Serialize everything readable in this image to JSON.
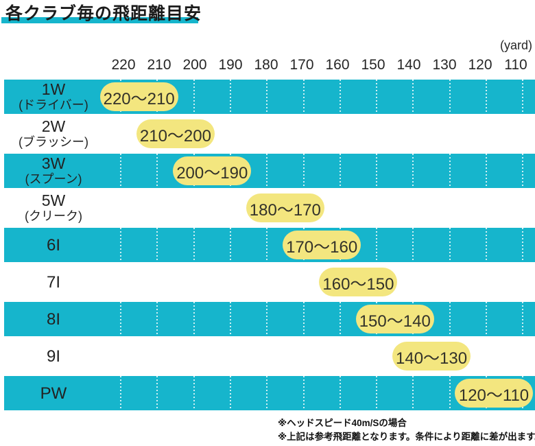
{
  "title": "各クラブ毎の飛距離目安",
  "axis": {
    "unit_label": "(yard)",
    "ticks": [
      "220",
      "210",
      "200",
      "190",
      "180",
      "170",
      "160",
      "150",
      "140",
      "130",
      "120",
      "110"
    ]
  },
  "rows": [
    {
      "club": "1W",
      "club_sub": "(ドライバー)",
      "range_label": "220〜210",
      "range": [
        220,
        210
      ]
    },
    {
      "club": "2W",
      "club_sub": "(ブラッシー)",
      "range_label": "210〜200",
      "range": [
        210,
        200
      ]
    },
    {
      "club": "3W",
      "club_sub": "(スプーン)",
      "range_label": "200〜190",
      "range": [
        200,
        190
      ]
    },
    {
      "club": "5W",
      "club_sub": "(クリーク)",
      "range_label": "180〜170",
      "range": [
        180,
        170
      ]
    },
    {
      "club": "6I",
      "club_sub": "",
      "range_label": "170〜160",
      "range": [
        170,
        160
      ]
    },
    {
      "club": "7I",
      "club_sub": "",
      "range_label": "160〜150",
      "range": [
        160,
        150
      ]
    },
    {
      "club": "8I",
      "club_sub": "",
      "range_label": "150〜140",
      "range": [
        150,
        140
      ]
    },
    {
      "club": "9I",
      "club_sub": "",
      "range_label": "140〜130",
      "range": [
        140,
        130
      ]
    },
    {
      "club": "PW",
      "club_sub": "",
      "range_label": "120〜110",
      "range": [
        120,
        110
      ]
    }
  ],
  "footnotes": [
    "※ヘッドスピード40m/Sの場合",
    "※上記は参考飛距離となります。条件により距離に差が出ます。"
  ],
  "colors": {
    "teal": "#16b5cc",
    "pill_yellow": "#f3e67f",
    "text": "#222222"
  },
  "chart_data": {
    "type": "bar",
    "title": "各クラブ毎の飛距離目安",
    "xlabel": "(yard)",
    "x_ticks": [
      220,
      210,
      200,
      190,
      180,
      170,
      160,
      150,
      140,
      130,
      120,
      110
    ],
    "x_axis_reversed": true,
    "categories": [
      "1W(ドライバー)",
      "2W(ブラッシー)",
      "3W(スプーン)",
      "5W(クリーク)",
      "6I",
      "7I",
      "8I",
      "9I",
      "PW"
    ],
    "series": [
      {
        "name": "飛距離目安(yard)",
        "ranges": [
          [
            220,
            210
          ],
          [
            210,
            200
          ],
          [
            200,
            190
          ],
          [
            180,
            170
          ],
          [
            170,
            160
          ],
          [
            160,
            150
          ],
          [
            150,
            140
          ],
          [
            140,
            130
          ],
          [
            120,
            110
          ]
        ]
      }
    ],
    "annotations": [
      "220〜210",
      "210〜200",
      "200〜190",
      "180〜170",
      "170〜160",
      "160〜150",
      "150〜140",
      "140〜130",
      "120〜110"
    ],
    "legend": false,
    "grid": true
  }
}
